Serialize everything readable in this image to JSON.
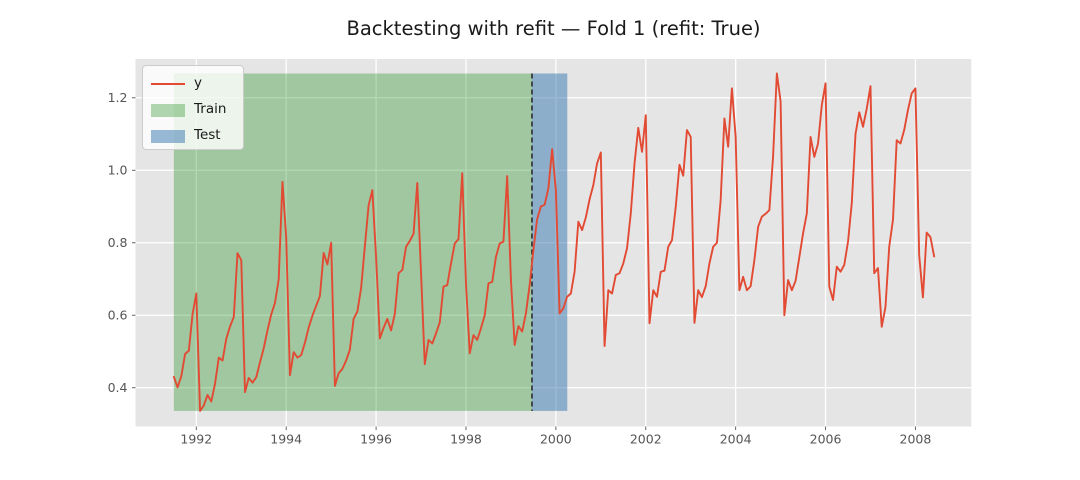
{
  "title": "Backtesting with refit — Fold 1 (refit: True)",
  "legend": {
    "items": [
      {
        "label": "y",
        "swatch": "red-line-swatch",
        "color": "#E24A33"
      },
      {
        "label": "Train",
        "swatch": "green-patch-swatch",
        "color": "rgba(0,128,0,0.30)"
      },
      {
        "label": "Test",
        "swatch": "blue-patch-swatch",
        "color": "rgba(70,130,180,0.55)"
      }
    ]
  },
  "colors": {
    "figure_bg": "#ffffff",
    "axes_bg": "#e5e5e5",
    "grid": "#ffffff",
    "tick_label": "#555555",
    "series_red": "#E24A33",
    "train_green": "#008000",
    "train_opacity": 0.3,
    "test_blue": "#4682B4",
    "test_opacity": 0.55,
    "separator": "#232323"
  },
  "chart_data": {
    "type": "line",
    "title": "Backtesting with refit — Fold 1 (refit: True)",
    "xlabel": "",
    "ylabel": "",
    "x_start": "1991-07",
    "x_end": "2008-06",
    "frequency": "monthly",
    "x_start_numeric": 1991.5,
    "xlim": [
      1990.647,
      2009.243
    ],
    "ylim": [
      0.293,
      1.307
    ],
    "x_ticks": [
      1992,
      1994,
      1996,
      1998,
      2000,
      2002,
      2004,
      2006,
      2008
    ],
    "y_ticks": [
      0.4,
      0.6,
      0.8,
      1.0,
      1.2
    ],
    "grid": true,
    "legend_position": "upper left",
    "span_value_range": [
      0.336,
      1.267
    ],
    "regions": [
      {
        "name": "Train",
        "start_label": "1991-07",
        "end_label": "1999-06",
        "start": 1991.5,
        "end": 1999.468
      },
      {
        "name": "Test",
        "start_label": "1999-07",
        "end_label": "2000-04",
        "start": 1999.468,
        "end": 2000.254
      }
    ],
    "separator": {
      "x": 1999.468,
      "label": "train/test boundary",
      "style": "dashed"
    },
    "series": [
      {
        "name": "y",
        "color": "#E24A33",
        "values": [
          0.43,
          0.401,
          0.432,
          0.493,
          0.502,
          0.603,
          0.66,
          0.336,
          0.351,
          0.38,
          0.362,
          0.411,
          0.483,
          0.475,
          0.535,
          0.569,
          0.595,
          0.771,
          0.752,
          0.388,
          0.427,
          0.414,
          0.429,
          0.47,
          0.509,
          0.558,
          0.602,
          0.634,
          0.699,
          0.968,
          0.814,
          0.435,
          0.498,
          0.483,
          0.49,
          0.524,
          0.566,
          0.599,
          0.626,
          0.653,
          0.772,
          0.74,
          0.8,
          0.405,
          0.44,
          0.452,
          0.475,
          0.505,
          0.59,
          0.61,
          0.675,
          0.79,
          0.903,
          0.945,
          0.76,
          0.536,
          0.565,
          0.59,
          0.558,
          0.604,
          0.716,
          0.725,
          0.789,
          0.805,
          0.825,
          0.965,
          0.716,
          0.465,
          0.532,
          0.522,
          0.55,
          0.58,
          0.679,
          0.683,
          0.743,
          0.798,
          0.81,
          0.992,
          0.688,
          0.495,
          0.545,
          0.532,
          0.564,
          0.6,
          0.688,
          0.692,
          0.761,
          0.798,
          0.803,
          0.984,
          0.697,
          0.518,
          0.57,
          0.555,
          0.605,
          0.683,
          0.78,
          0.865,
          0.9,
          0.905,
          0.95,
          1.058,
          0.945,
          0.605,
          0.619,
          0.651,
          0.66,
          0.72,
          0.858,
          0.835,
          0.87,
          0.92,
          0.959,
          1.019,
          1.049,
          0.515,
          0.669,
          0.66,
          0.711,
          0.716,
          0.743,
          0.785,
          0.881,
          1.019,
          1.117,
          1.051,
          1.152,
          0.578,
          0.669,
          0.651,
          0.72,
          0.723,
          0.789,
          0.807,
          0.899,
          1.015,
          0.985,
          1.111,
          1.092,
          0.579,
          0.669,
          0.65,
          0.68,
          0.743,
          0.789,
          0.8,
          0.918,
          1.143,
          1.065,
          1.226,
          1.092,
          0.669,
          0.706,
          0.669,
          0.68,
          0.752,
          0.844,
          0.872,
          0.88,
          0.89,
          1.04,
          1.267,
          1.19,
          0.6,
          0.697,
          0.669,
          0.695,
          0.76,
          0.826,
          0.881,
          1.092,
          1.037,
          1.074,
          1.18,
          1.24,
          0.679,
          0.642,
          0.734,
          0.72,
          0.739,
          0.803,
          0.909,
          1.1,
          1.16,
          1.12,
          1.17,
          1.232,
          0.716,
          0.73,
          0.568,
          0.623,
          0.789,
          0.863,
          1.083,
          1.074,
          1.111,
          1.166,
          1.212,
          1.226,
          0.766,
          0.649,
          0.828,
          0.816,
          0.762
        ]
      }
    ]
  }
}
